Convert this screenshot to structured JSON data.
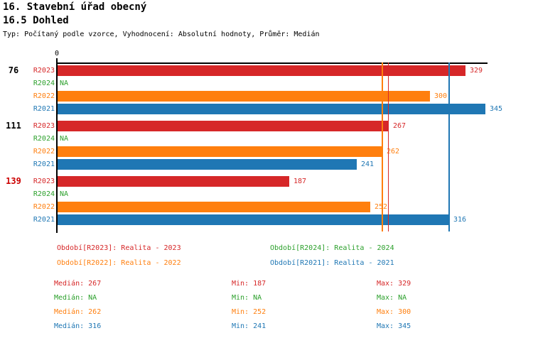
{
  "header": {
    "title": "16. Stavební úřad obecný",
    "subtitle": "16.5 Dohled",
    "meta": "Typ: Počítaný podle vzorce, Vyhodnocení: Absolutní hodnoty, Průměr: Medián"
  },
  "colors": {
    "R2023": "#d62728",
    "R2024": "#2ca02c",
    "R2022": "#ff7f0e",
    "R2021": "#1f77b4",
    "highlight": "#cc0000",
    "axis": "#000000"
  },
  "chart_data": {
    "type": "bar",
    "orientation": "horizontal",
    "axis_zero_label": "0",
    "xlim": [
      0,
      346
    ],
    "series_order": [
      "R2023",
      "R2024",
      "R2022",
      "R2021"
    ],
    "groups": [
      {
        "label": "76",
        "highlighted": false,
        "bars": [
          {
            "series": "R2023",
            "value": 329,
            "display": "329"
          },
          {
            "series": "R2024",
            "value": null,
            "display": "NA"
          },
          {
            "series": "R2022",
            "value": 300,
            "display": "300"
          },
          {
            "series": "R2021",
            "value": 345,
            "display": "345"
          }
        ]
      },
      {
        "label": "111",
        "highlighted": false,
        "bars": [
          {
            "series": "R2023",
            "value": 267,
            "display": "267"
          },
          {
            "series": "R2024",
            "value": null,
            "display": "NA"
          },
          {
            "series": "R2022",
            "value": 262,
            "display": "262"
          },
          {
            "series": "R2021",
            "value": 241,
            "display": "241"
          }
        ]
      },
      {
        "label": "139",
        "highlighted": true,
        "bars": [
          {
            "series": "R2023",
            "value": 187,
            "display": "187"
          },
          {
            "series": "R2024",
            "value": null,
            "display": "NA"
          },
          {
            "series": "R2022",
            "value": 252,
            "display": "252"
          },
          {
            "series": "R2021",
            "value": 316,
            "display": "316"
          }
        ]
      }
    ],
    "median_lines": [
      {
        "series": "R2022",
        "value": 262
      },
      {
        "series": "R2023",
        "value": 267
      },
      {
        "series": "R2021",
        "value": 316
      }
    ]
  },
  "legend": [
    {
      "series": "R2023",
      "label": "Období[R2023]: Realita - 2023"
    },
    {
      "series": "R2024",
      "label": "Období[R2024]: Realita - 2024"
    },
    {
      "series": "R2022",
      "label": "Období[R2022]: Realita - 2022"
    },
    {
      "series": "R2021",
      "label": "Období[R2021]: Realita - 2021"
    }
  ],
  "stats": [
    {
      "series": "R2023",
      "median": "Medián: 267",
      "min": "Min: 187",
      "max": "Max: 329"
    },
    {
      "series": "R2024",
      "median": "Medián: NA",
      "min": "Min: NA",
      "max": "Max: NA"
    },
    {
      "series": "R2022",
      "median": "Medián: 262",
      "min": "Min: 252",
      "max": "Max: 300"
    },
    {
      "series": "R2021",
      "median": "Medián: 316",
      "min": "Min: 241",
      "max": "Max: 345"
    }
  ]
}
